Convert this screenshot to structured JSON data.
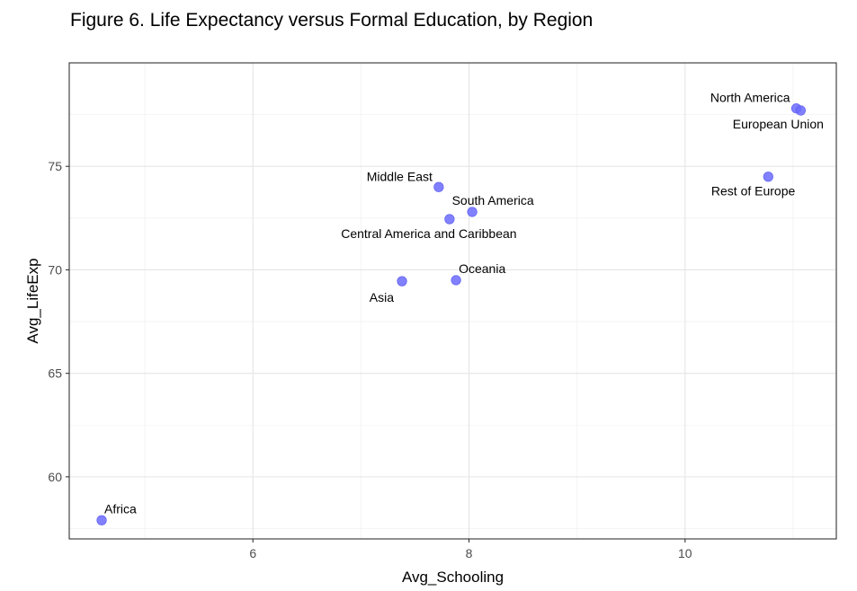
{
  "chart_data": {
    "type": "scatter",
    "title": "Figure 6. Life Expectancy versus Formal Education, by Region",
    "xlabel": "Avg_Schooling",
    "ylabel": "Avg_LifeExp",
    "xlim": [
      4.3,
      11.4
    ],
    "ylim": [
      57.0,
      80.0
    ],
    "xticks": [
      6,
      8,
      10
    ],
    "yticks": [
      60,
      65,
      70,
      75
    ],
    "grid": true,
    "point_color": "#6b6bff",
    "points": [
      {
        "label": "North America",
        "x": 11.03,
        "y": 77.8,
        "label_pos": "above-left"
      },
      {
        "label": "European Union",
        "x": 11.07,
        "y": 77.7,
        "label_pos": "below"
      },
      {
        "label": "Rest of Europe",
        "x": 10.77,
        "y": 74.5,
        "label_pos": "below-left"
      },
      {
        "label": "Middle East",
        "x": 7.72,
        "y": 74.0,
        "label_pos": "above-left"
      },
      {
        "label": "South America",
        "x": 8.03,
        "y": 72.8,
        "label_pos": "above"
      },
      {
        "label": "Central America and Caribbean",
        "x": 7.82,
        "y": 72.45,
        "label_pos": "below"
      },
      {
        "label": "Oceania",
        "x": 7.88,
        "y": 69.5,
        "label_pos": "above-right"
      },
      {
        "label": "Asia",
        "x": 7.38,
        "y": 69.45,
        "label_pos": "below-left"
      },
      {
        "label": "Africa",
        "x": 4.6,
        "y": 57.9,
        "label_pos": "above-right"
      }
    ]
  }
}
